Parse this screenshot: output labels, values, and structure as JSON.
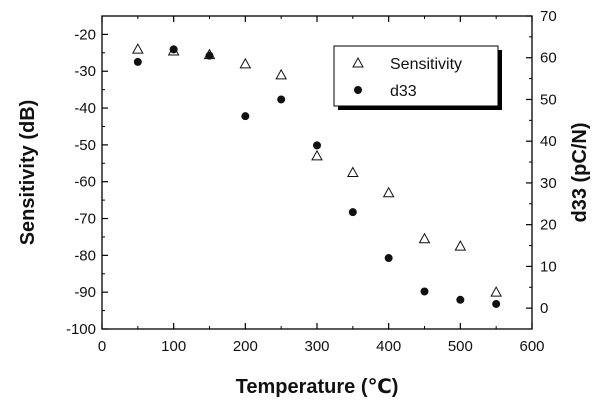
{
  "chart_data": {
    "type": "scatter",
    "x": [
      50,
      100,
      150,
      200,
      250,
      300,
      350,
      400,
      450,
      500,
      550
    ],
    "series": [
      {
        "name": "Sensitivity",
        "axis": "left",
        "marker": "open-triangle",
        "values": [
          -24,
          -24.5,
          -25.5,
          -28,
          -31,
          -53,
          -57.5,
          -63,
          -75.5,
          -77.5,
          -90
        ]
      },
      {
        "name": "d33",
        "axis": "right",
        "marker": "filled-circle",
        "values": [
          59,
          62,
          60.5,
          46,
          50,
          39,
          23,
          12,
          4,
          2,
          1
        ]
      }
    ],
    "xlabel": "Temperature (℃)",
    "ylabel": "Sensitivity (dB)",
    "y2label": "d33 (pC/N)",
    "xlim": [
      0,
      600
    ],
    "ylim": [
      -100,
      -15
    ],
    "y2lim": [
      -5,
      70
    ],
    "xticks": [
      "0",
      "100",
      "200",
      "300",
      "400",
      "500",
      "600"
    ],
    "yticks": [
      "-20",
      "-30",
      "-40",
      "-50",
      "-60",
      "-70",
      "-80",
      "-90",
      "-100"
    ],
    "y2ticks": [
      "0",
      "10",
      "20",
      "30",
      "40",
      "50",
      "60",
      "70"
    ],
    "grid": false,
    "legend_position": "top-right"
  }
}
